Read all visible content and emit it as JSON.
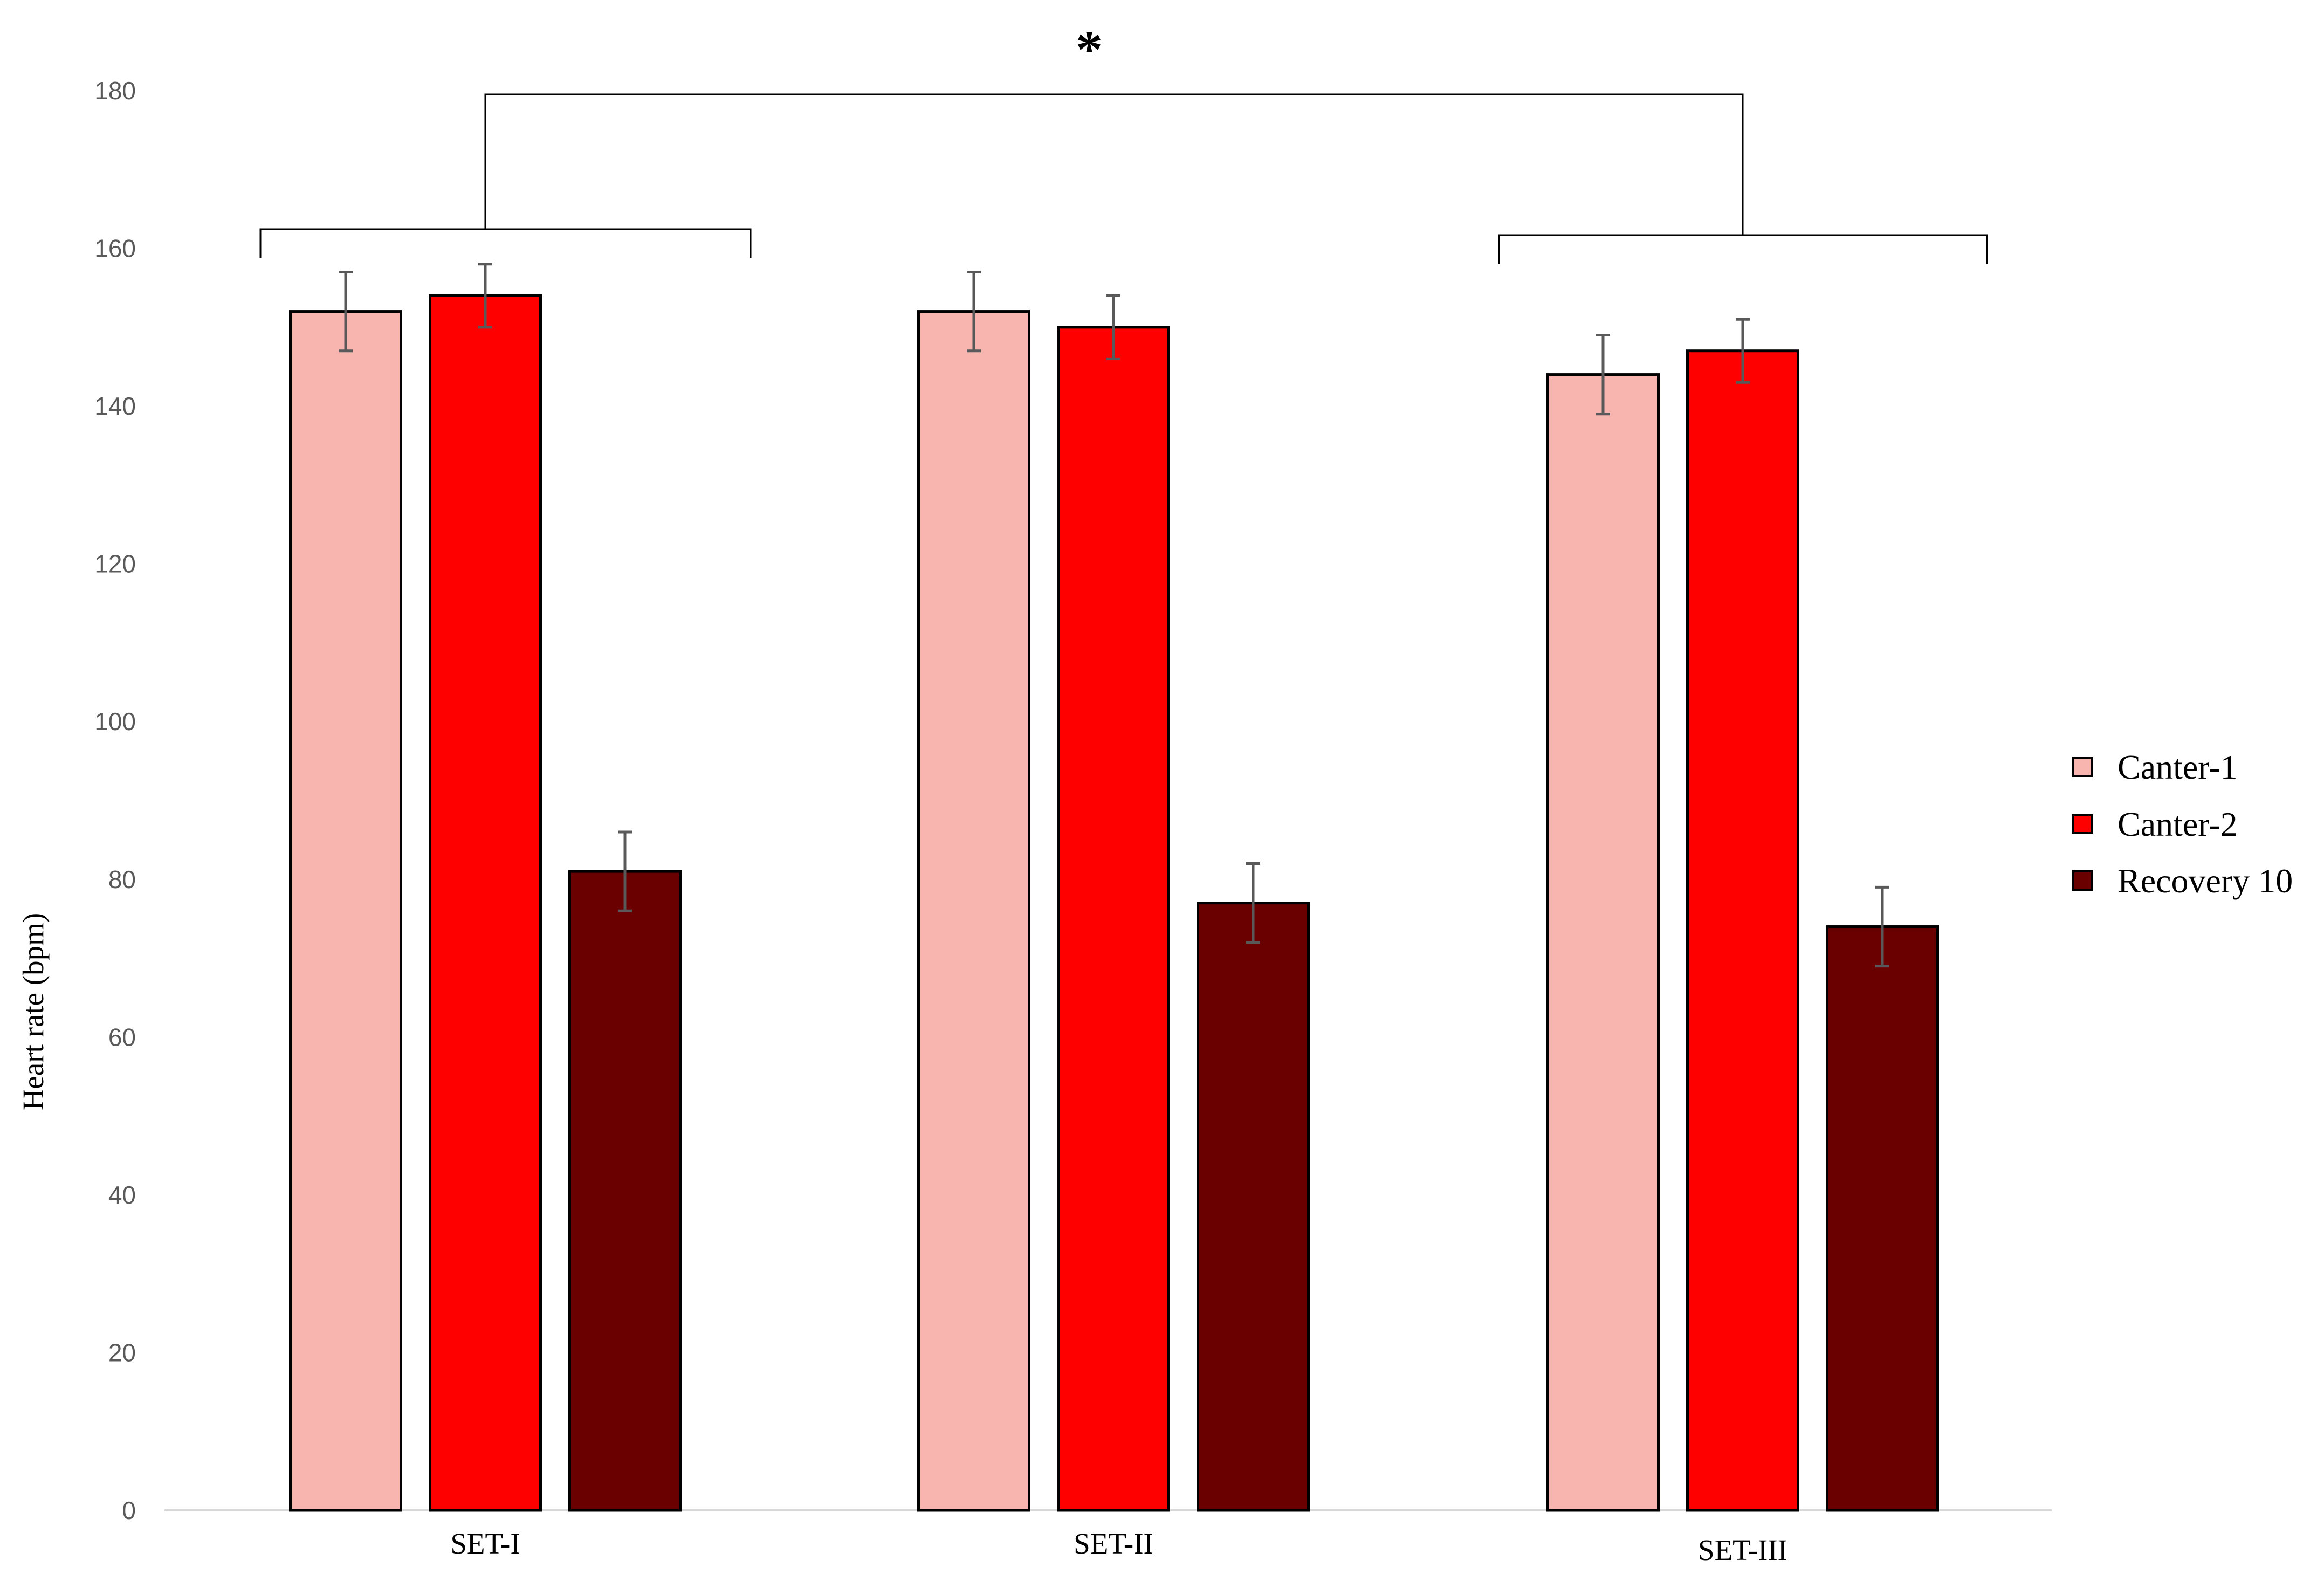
{
  "chart_data": {
    "type": "bar",
    "title": "",
    "xlabel": "",
    "ylabel": "Heart rate (bpm)",
    "ylim": [
      0,
      180
    ],
    "yticks": [
      0,
      20,
      40,
      60,
      80,
      100,
      120,
      140,
      160,
      180
    ],
    "categories": [
      "SET-I",
      "SET-II",
      "SET-III"
    ],
    "series": [
      {
        "name": "Canter-1",
        "color": "#f8b4ae",
        "values": [
          152,
          152,
          144
        ],
        "errors": [
          5,
          5,
          5
        ]
      },
      {
        "name": "Canter-2",
        "color": "#ff0000",
        "values": [
          154,
          150,
          147
        ],
        "errors": [
          4,
          4,
          4
        ]
      },
      {
        "name": "Recovery 10",
        "color": "#6b0000",
        "values": [
          81,
          77,
          74
        ],
        "errors": [
          5,
          5,
          5
        ]
      }
    ],
    "grid": false,
    "legend": "right",
    "annotations": [
      {
        "type": "significance-bracket",
        "label": "*",
        "from": "SET-I",
        "to": "SET-III"
      }
    ]
  }
}
